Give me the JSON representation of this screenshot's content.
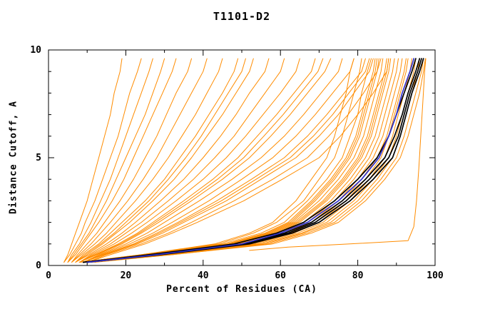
{
  "chart_data": {
    "type": "line",
    "title": "T1101-D2",
    "xlabel": "Percent of Residues (CA)",
    "ylabel": "Distance Cutoff, A",
    "xlim": [
      0,
      100
    ],
    "ylim": [
      0,
      10
    ],
    "x_major_ticks": [
      0,
      20,
      40,
      60,
      80,
      100
    ],
    "x_minor_step": 10,
    "y_major_ticks": [
      0,
      5,
      10
    ],
    "y_minor_step": 1,
    "grid": false,
    "legend": "none",
    "colors": {
      "model": "#ff8c00",
      "best": "#000000",
      "selected": "#3333cc"
    },
    "widths": {
      "model": 1,
      "best": 1.7,
      "selected": 1.7
    },
    "y_levels": [
      0.15,
      0.5,
      1,
      1.5,
      2,
      3,
      4,
      5,
      6,
      7,
      8,
      9,
      9.6
    ],
    "series": [
      {
        "kind": "model",
        "x": [
          4,
          5,
          6,
          7,
          8,
          10,
          11.5,
          13,
          14.5,
          16,
          17,
          18.5,
          19
        ]
      },
      {
        "kind": "model",
        "x": [
          4,
          5.5,
          7,
          8.5,
          9.5,
          12,
          14,
          16,
          18,
          19.5,
          21,
          23,
          24
        ]
      },
      {
        "kind": "model",
        "x": [
          5,
          6,
          8,
          9.5,
          11,
          13.5,
          16,
          18,
          20,
          22,
          24,
          26,
          27
        ]
      },
      {
        "kind": "model",
        "x": [
          5,
          6.5,
          8.5,
          10.5,
          12,
          15,
          17.5,
          20,
          22.5,
          25,
          27,
          29,
          30
        ]
      },
      {
        "kind": "model",
        "x": [
          5,
          7,
          9,
          11,
          13,
          16.5,
          19.5,
          22,
          24.5,
          27,
          29.5,
          32,
          33
        ]
      },
      {
        "kind": "model",
        "x": [
          6,
          7.5,
          10,
          12.5,
          14.5,
          18.5,
          22,
          25,
          28,
          30.5,
          33,
          36,
          37
        ]
      },
      {
        "kind": "model",
        "x": [
          6,
          8,
          11,
          13.5,
          16,
          20.5,
          24.5,
          28,
          31,
          34,
          37,
          40,
          41
        ]
      },
      {
        "kind": "model",
        "x": [
          6,
          8.5,
          12,
          15,
          17.5,
          22.5,
          27,
          31,
          34.5,
          38,
          41,
          44,
          45
        ]
      },
      {
        "kind": "model",
        "x": [
          7,
          9,
          13,
          16,
          19,
          25,
          30,
          34,
          38,
          41.5,
          45,
          48,
          49
        ]
      },
      {
        "kind": "model",
        "x": [
          7,
          10,
          14,
          17.5,
          21,
          27,
          32.5,
          37,
          41,
          45,
          48.5,
          52,
          53
        ]
      },
      {
        "kind": "model",
        "x": [
          7,
          10.5,
          15,
          19,
          22.5,
          29,
          35,
          40,
          44.5,
          48.5,
          52,
          56,
          57
        ]
      },
      {
        "kind": "model",
        "x": [
          7,
          9.5,
          13.5,
          17,
          20,
          26,
          31,
          35.5,
          39.5,
          43,
          46.5,
          50,
          51
        ]
      },
      {
        "kind": "model",
        "x": [
          8,
          11,
          16,
          20,
          24,
          31,
          37.5,
          43,
          48,
          52,
          56,
          60,
          61
        ]
      },
      {
        "kind": "model",
        "x": [
          8,
          11.5,
          17,
          21.5,
          25.5,
          33,
          40,
          46,
          51,
          55.5,
          60,
          64,
          65
        ]
      },
      {
        "kind": "model",
        "x": [
          8,
          12,
          18,
          23,
          27,
          35,
          42.5,
          49,
          54,
          59,
          63.5,
          68,
          69
        ]
      },
      {
        "kind": "model",
        "x": [
          8,
          12.2,
          18.5,
          23.5,
          27.7,
          36,
          43.7,
          50.5,
          55.7,
          60.7,
          65.2,
          69.7,
          71
        ]
      },
      {
        "kind": "model",
        "x": [
          8,
          12.5,
          19,
          24,
          28.5,
          37,
          45,
          52,
          57.5,
          62.5,
          67,
          71.5,
          73
        ]
      },
      {
        "kind": "model",
        "x": [
          9,
          13,
          20,
          25.5,
          30,
          39,
          47.5,
          55,
          61,
          66,
          70.5,
          75,
          76
        ]
      },
      {
        "kind": "model",
        "x": [
          9,
          13.5,
          21,
          27,
          32,
          41.5,
          50,
          58,
          64,
          69,
          73.5,
          78,
          79
        ]
      },
      {
        "kind": "model",
        "x": [
          9,
          14,
          22,
          28,
          33.5,
          43.5,
          52.5,
          61,
          67,
          72,
          76.5,
          81,
          82
        ]
      },
      {
        "kind": "model",
        "x": [
          9,
          14.2,
          22.5,
          28.7,
          34.2,
          44.7,
          53.7,
          62.5,
          68.5,
          73.5,
          77.7,
          82,
          83
        ]
      },
      {
        "kind": "model",
        "x": [
          9,
          14.5,
          23,
          29.5,
          35,
          46,
          55,
          64,
          70,
          75,
          79,
          83,
          84
        ]
      },
      {
        "kind": "model",
        "x": [
          10,
          15,
          24,
          31,
          37,
          48,
          58,
          67,
          72.5,
          77.5,
          81.5,
          85,
          86
        ]
      },
      {
        "kind": "model",
        "x": [
          10,
          16,
          25,
          32,
          38.5,
          50.5,
          60.5,
          70,
          75.5,
          80,
          84,
          87.5,
          88
        ]
      },
      {
        "kind": "model",
        "x": [
          8,
          24,
          43,
          52,
          58,
          64,
          68,
          72,
          74,
          75.5,
          77,
          78,
          79
        ]
      },
      {
        "kind": "model",
        "x": [
          8,
          24,
          44,
          53,
          59,
          66,
          70,
          74,
          76,
          77.5,
          79,
          80.5,
          81
        ]
      },
      {
        "kind": "model",
        "x": [
          8,
          25,
          45,
          55,
          61,
          67,
          72,
          76,
          78,
          80,
          81,
          82.5,
          83.5
        ]
      },
      {
        "kind": "model",
        "x": [
          9,
          25,
          46,
          56,
          62,
          68,
          73,
          77,
          79.5,
          81,
          82.5,
          84,
          84.5
        ]
      },
      {
        "kind": "model",
        "x": [
          9,
          26.5,
          46.5,
          56.5,
          62.5,
          68.5,
          73.5,
          77.5,
          80,
          81.5,
          83,
          84.5,
          85
        ]
      },
      {
        "kind": "model",
        "x": [
          9,
          26,
          47,
          57,
          63,
          69,
          74,
          78,
          80.5,
          82,
          83.5,
          85,
          85.5
        ]
      },
      {
        "kind": "model",
        "x": [
          9,
          26,
          47.5,
          57.5,
          63.5,
          70,
          75,
          79,
          81.5,
          83,
          84.5,
          86,
          86.5
        ]
      },
      {
        "kind": "model",
        "x": [
          9,
          27,
          48,
          58,
          64,
          71,
          76,
          80,
          82.5,
          84,
          85.5,
          87,
          87.5
        ]
      },
      {
        "kind": "model",
        "x": [
          10,
          27.5,
          48.5,
          58.5,
          64.5,
          71.5,
          76.5,
          80.5,
          83,
          84.5,
          86,
          87.5,
          88
        ]
      },
      {
        "kind": "model",
        "x": [
          9,
          27,
          49,
          59,
          65,
          72,
          77,
          81,
          83.5,
          85,
          86.5,
          88,
          88.5
        ]
      },
      {
        "kind": "model",
        "x": [
          10,
          28,
          50,
          60,
          66,
          73,
          78,
          82,
          84.5,
          86,
          87.5,
          89,
          89.5
        ]
      },
      {
        "kind": "model",
        "x": [
          10,
          28,
          50,
          61,
          67,
          74,
          79,
          83,
          85.5,
          87,
          88.5,
          90,
          90.5
        ]
      },
      {
        "kind": "model",
        "x": [
          10,
          29,
          51,
          62,
          68,
          75,
          80,
          84,
          86.5,
          88,
          89.5,
          91,
          91.5
        ]
      },
      {
        "kind": "model",
        "x": [
          10,
          29,
          52,
          62.5,
          69,
          76,
          81,
          85,
          87.5,
          89,
          90.5,
          92,
          92.5
        ]
      },
      {
        "kind": "model",
        "x": [
          10,
          30,
          53,
          63.5,
          70,
          77,
          82,
          86,
          88,
          89.5,
          91,
          92.5,
          93
        ]
      },
      {
        "kind": "model",
        "x": [
          11,
          30,
          54,
          64.5,
          71,
          78,
          83,
          87,
          89,
          90.5,
          92,
          93.5,
          94
        ]
      },
      {
        "kind": "model",
        "x": [
          11,
          31,
          55,
          65.5,
          72,
          79,
          84,
          88,
          90,
          91.5,
          93,
          94.5,
          95
        ]
      },
      {
        "kind": "model",
        "x": [
          11,
          31,
          56,
          66,
          73,
          80,
          85,
          89,
          91,
          92.5,
          94,
          95.5,
          96
        ]
      },
      {
        "kind": "model",
        "x": [
          11,
          32,
          57,
          67,
          74,
          81,
          86,
          90,
          92,
          93.5,
          95,
          96.5,
          97
        ]
      },
      {
        "kind": "model",
        "x": [
          12,
          32,
          58,
          68,
          75,
          82,
          87,
          91,
          93,
          94.5,
          96,
          97,
          97.5
        ]
      },
      {
        "kind": "model",
        "name": "outlier-model-curve",
        "points": [
          [
            52,
            0.7
          ],
          [
            62,
            0.85
          ],
          [
            78,
            1.0
          ],
          [
            93,
            1.15
          ],
          [
            94.5,
            1.8
          ],
          [
            95.2,
            3
          ],
          [
            95.8,
            4.5
          ],
          [
            96.3,
            6
          ],
          [
            96.8,
            7.5
          ],
          [
            97.3,
            9
          ],
          [
            97.6,
            9.6
          ]
        ]
      },
      {
        "kind": "best",
        "x": [
          9,
          26,
          48,
          59,
          66,
          74,
          80,
          85,
          88,
          90,
          92,
          94,
          95
        ]
      },
      {
        "kind": "best",
        "x": [
          9,
          27,
          50,
          61,
          68,
          76,
          82,
          87,
          89.5,
          91.5,
          93,
          95,
          96
        ]
      },
      {
        "kind": "best",
        "x": [
          10,
          28,
          51,
          62,
          69,
          77,
          83,
          88,
          90.5,
          92,
          93.5,
          95.5,
          96.5
        ]
      },
      {
        "kind": "best",
        "x": [
          10,
          29,
          52,
          63,
          70,
          78,
          84,
          89,
          91,
          92.5,
          94,
          96,
          97
        ]
      },
      {
        "kind": "selected",
        "x": [
          10,
          28,
          50,
          60,
          67,
          75,
          81,
          85.5,
          88,
          90,
          91.5,
          93.5,
          94.5
        ]
      }
    ]
  }
}
